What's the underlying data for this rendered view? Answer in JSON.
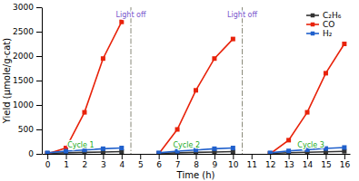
{
  "chart_data": {
    "type": "line",
    "xlabel": "Time (h)",
    "ylabel": "Yield (μmole/g·cat)",
    "x": [
      0,
      1,
      2,
      3,
      4,
      5,
      6,
      7,
      8,
      9,
      10,
      11,
      12,
      13,
      14,
      15,
      16
    ],
    "series": [
      {
        "name": "C₂H₆",
        "color": "#333333",
        "marker": "square",
        "values": [
          10,
          20,
          30,
          38,
          45,
          null,
          10,
          20,
          30,
          38,
          45,
          null,
          10,
          22,
          33,
          42,
          52
        ]
      },
      {
        "name": "CO",
        "color": "#e8220a",
        "marker": "square",
        "values": [
          0,
          120,
          850,
          1950,
          2700,
          null,
          0,
          500,
          1300,
          1950,
          2350,
          null,
          0,
          280,
          850,
          1650,
          2250
        ]
      },
      {
        "name": "H₂",
        "color": "#2060cc",
        "marker": "square",
        "values": [
          20,
          55,
          80,
          105,
          120,
          null,
          20,
          55,
          80,
          105,
          120,
          null,
          20,
          60,
          85,
          110,
          130
        ]
      }
    ],
    "xlim": [
      -0.3,
      16.3
    ],
    "ylim": [
      0,
      3000
    ],
    "xticks": [
      0,
      1,
      2,
      3,
      4,
      5,
      6,
      7,
      8,
      9,
      10,
      11,
      12,
      13,
      14,
      15,
      16
    ],
    "yticks": [
      0,
      500,
      1000,
      1500,
      2000,
      2500,
      3000
    ],
    "grid": false,
    "legend": "upper right",
    "annotations": [
      {
        "text": "Cycle 1",
        "x": 1.8,
        "y": 130,
        "color": "#22aa22"
      },
      {
        "text": "Cycle 2",
        "x": 7.5,
        "y": 130,
        "color": "#22aa22"
      },
      {
        "text": "Cycle 3",
        "x": 14.2,
        "y": 130,
        "color": "#22aa22"
      },
      {
        "text": "Light off",
        "x": 4.5,
        "y": 2800,
        "color": "#7755cc"
      },
      {
        "text": "Light off",
        "x": 10.5,
        "y": 2800,
        "color": "#7755cc"
      }
    ],
    "vlines": [
      4.5,
      10.5
    ]
  }
}
